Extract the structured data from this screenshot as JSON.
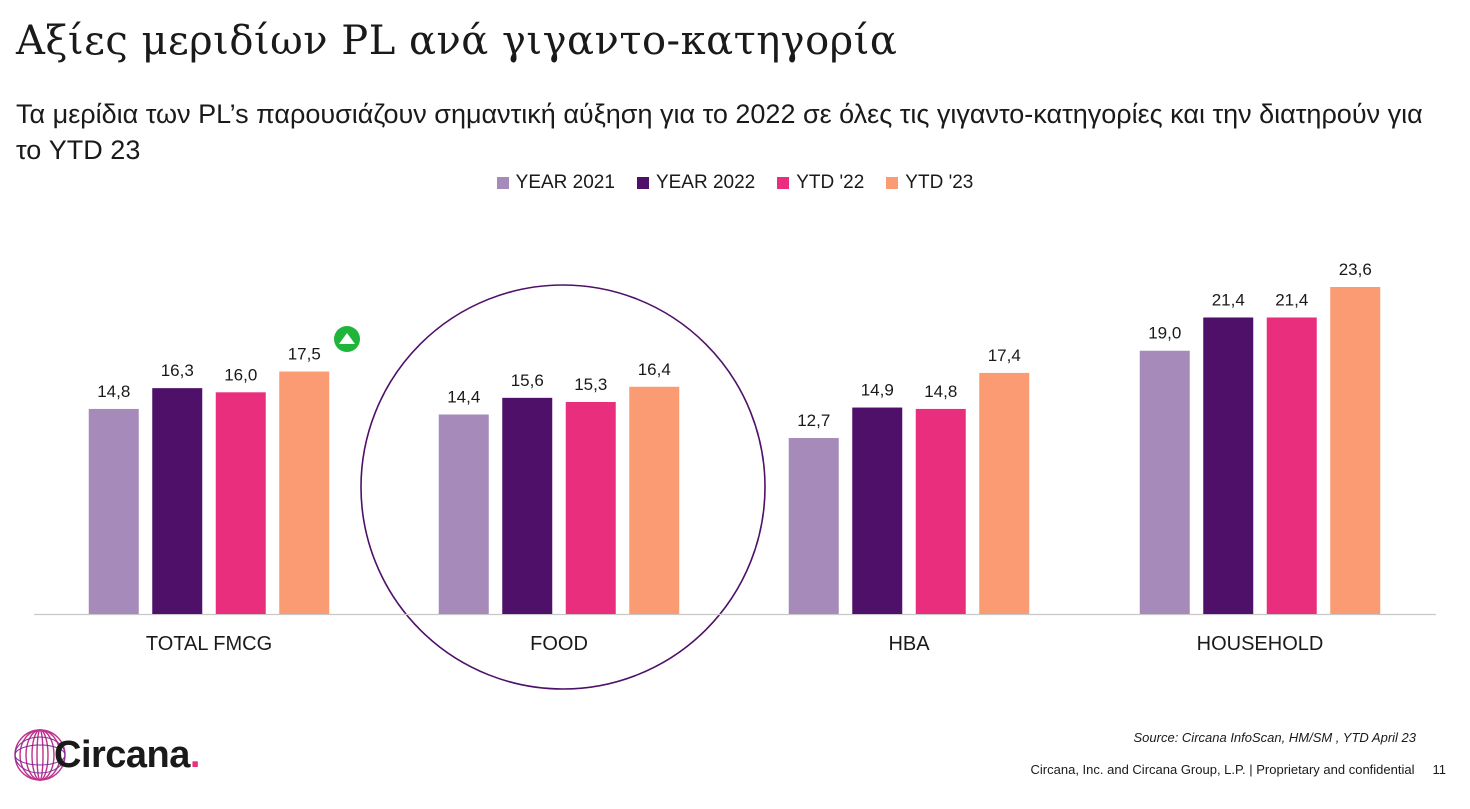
{
  "slide": {
    "title": "Αξίες μεριδίων PL ανά γιγαντο-κατηγορία",
    "subtitle": "Τα μερίδια των PL’s παρουσιάζουν σημαντική αύξηση για το 2022 σε όλες τις γιγαντο-κατηγορίες και την διατηρούν για το YTD 23"
  },
  "chart_data": {
    "type": "bar",
    "categories": [
      "TOTAL FMCG",
      "FOOD",
      "HBA",
      "HOUSEHOLD"
    ],
    "series": [
      {
        "name": "YEAR 2021",
        "color": "#a68ab9",
        "values": [
          14.8,
          14.4,
          12.7,
          19.0
        ],
        "labels": [
          "14,8",
          "14,4",
          "12,7",
          "19,0"
        ]
      },
      {
        "name": "YEAR 2022",
        "color": "#4e1068",
        "values": [
          16.3,
          15.6,
          14.9,
          21.4
        ],
        "labels": [
          "16,3",
          "15,6",
          "14,9",
          "21,4"
        ]
      },
      {
        "name": "YTD '22",
        "color": "#ea2e7e",
        "values": [
          16.0,
          15.3,
          14.8,
          21.4
        ],
        "labels": [
          "16,0",
          "15,3",
          "14,8",
          "21,4"
        ]
      },
      {
        "name": "YTD '23",
        "color": "#fb9b74",
        "values": [
          17.5,
          16.4,
          17.4,
          23.6
        ],
        "labels": [
          "17,5",
          "16,4",
          "17,4",
          "23,6"
        ]
      }
    ],
    "legend_position": "top-center",
    "grid": false,
    "ylim": [
      0,
      25
    ],
    "annotations": [
      {
        "type": "up-arrow-badge",
        "color": "#1eb53a",
        "category": "TOTAL FMCG"
      },
      {
        "type": "highlight-circle",
        "color": "#4e1068",
        "category": "FOOD"
      }
    ]
  },
  "branding": {
    "logo_text": "Circana",
    "logo_dot": ".",
    "logo_color": "#e8307f"
  },
  "footer": {
    "source": "Source: Circana InfoScan, HM/SM , YTD April 23",
    "company": "Circana, Inc. and Circana Group, L.P. |  Proprietary and confidential",
    "page_number": "11"
  }
}
